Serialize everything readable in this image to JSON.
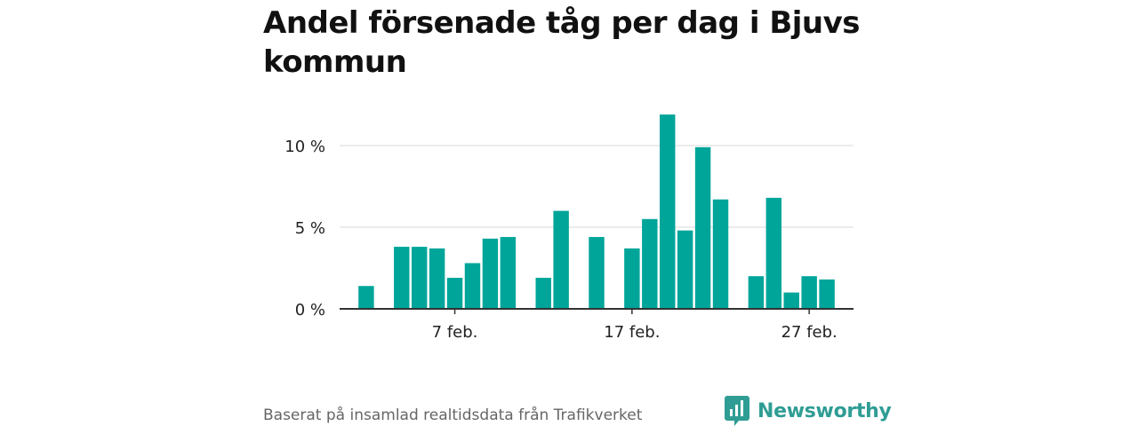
{
  "page": {
    "title": "Andel försenade tåg per dag i Bjuvs kommun",
    "source": "Baserat på insamlad realtidsdata från Trafikverket",
    "brand": "Newsworthy",
    "accent_color": "#00a59a",
    "brand_color": "#2f9d94"
  },
  "chart_data": {
    "type": "bar",
    "title": "Andel försenade tåg per dag i Bjuvs kommun",
    "xlabel": "",
    "ylabel": "",
    "x_ticks": [
      {
        "day": 7,
        "label": "7 feb."
      },
      {
        "day": 17,
        "label": "17 feb."
      },
      {
        "day": 27,
        "label": "27 feb."
      }
    ],
    "y_ticks": [
      {
        "value": 0,
        "label": "0 %"
      },
      {
        "value": 5,
        "label": "5 %"
      },
      {
        "value": 10,
        "label": "10 %"
      }
    ],
    "ylim": [
      0,
      12.5
    ],
    "xlim": [
      0.5,
      29.5
    ],
    "grid": true,
    "color": "#00a59a",
    "x": [
      1,
      2,
      3,
      4,
      5,
      6,
      7,
      8,
      9,
      10,
      11,
      12,
      13,
      14,
      15,
      16,
      17,
      18,
      19,
      20,
      21,
      22,
      23,
      24,
      25,
      26,
      27,
      28,
      29
    ],
    "values": [
      null,
      1.4,
      null,
      3.8,
      3.8,
      3.7,
      1.9,
      2.8,
      4.3,
      4.4,
      null,
      1.9,
      6.0,
      null,
      4.4,
      null,
      3.7,
      5.5,
      11.9,
      4.8,
      9.9,
      6.7,
      null,
      2.0,
      6.8,
      1.0,
      2.0,
      1.8,
      null
    ]
  }
}
